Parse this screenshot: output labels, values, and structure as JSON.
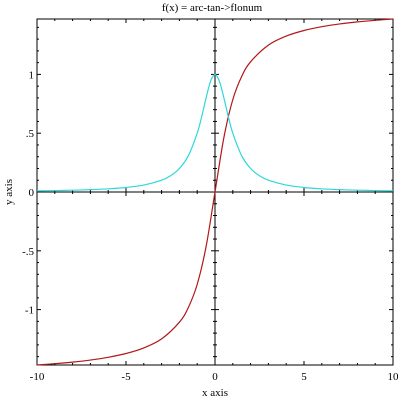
{
  "chart_data": {
    "type": "line",
    "title": "f(x) = arc-tan->flonum",
    "xlabel": "x axis",
    "ylabel": "y axis",
    "xlim": [
      -10,
      10
    ],
    "ylim": [
      -1.4711,
      1.4711
    ],
    "x_ticks": [
      {
        "value": -10,
        "label": "-10"
      },
      {
        "value": -5,
        "label": "-5"
      },
      {
        "value": 0,
        "label": "0"
      },
      {
        "value": 5,
        "label": "5"
      },
      {
        "value": 10,
        "label": "10"
      }
    ],
    "y_ticks": [
      {
        "value": -1,
        "label": "-1"
      },
      {
        "value": -0.5,
        "label": "-.5"
      },
      {
        "value": 0,
        "label": "0"
      },
      {
        "value": 0.5,
        "label": ".5"
      },
      {
        "value": 1,
        "label": "1"
      }
    ],
    "grid": false,
    "series": [
      {
        "color": "#b01818",
        "x": [
          -10,
          -9,
          -8,
          -7,
          -6,
          -5,
          -4,
          -3,
          -2,
          -1.5,
          -1,
          -0.5,
          0,
          0.5,
          1,
          1.5,
          2,
          3,
          4,
          5,
          6,
          7,
          8,
          9,
          10
        ],
        "y": [
          -1.4711,
          -1.4601,
          -1.4464,
          -1.4289,
          -1.4056,
          -1.3734,
          -1.3258,
          -1.249,
          -1.1071,
          -0.9828,
          -0.7854,
          -0.4636,
          0,
          0.4636,
          0.7854,
          0.9828,
          1.1071,
          1.249,
          1.3258,
          1.3734,
          1.4056,
          1.4289,
          1.4464,
          1.4601,
          1.4711
        ]
      },
      {
        "color": "#2ed8d8",
        "x": [
          -10,
          -9,
          -8,
          -7,
          -6,
          -5,
          -4,
          -3,
          -2.5,
          -2,
          -1.5,
          -1,
          -0.75,
          -0.5,
          -0.25,
          0,
          0.25,
          0.5,
          0.75,
          1,
          1.5,
          2,
          2.5,
          3,
          4,
          5,
          6,
          7,
          8,
          9,
          10
        ],
        "y": [
          0.0099,
          0.0122,
          0.0154,
          0.02,
          0.027,
          0.0385,
          0.0588,
          0.1,
          0.1379,
          0.2,
          0.3077,
          0.5,
          0.64,
          0.8,
          0.9412,
          1,
          0.9412,
          0.8,
          0.64,
          0.5,
          0.3077,
          0.2,
          0.1379,
          0.1,
          0.0588,
          0.0385,
          0.027,
          0.02,
          0.0154,
          0.0122,
          0.0099
        ]
      }
    ]
  }
}
